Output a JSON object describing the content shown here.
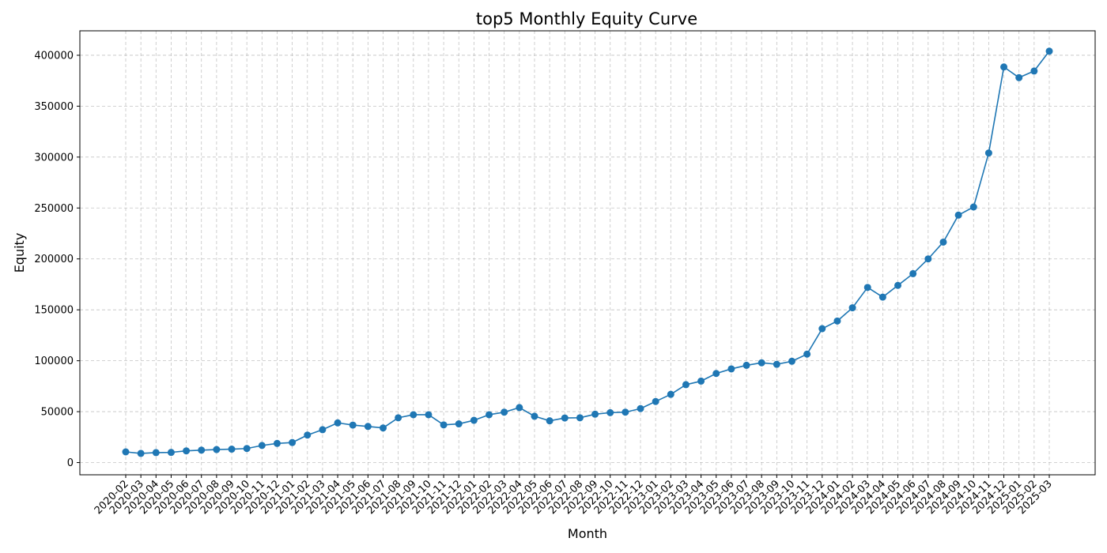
{
  "chart_data": {
    "type": "line",
    "title": "top5 Monthly Equity Curve",
    "xlabel": "Month",
    "ylabel": "Equity",
    "ylim": [
      -12000,
      424000
    ],
    "yticks": [
      0,
      50000,
      100000,
      150000,
      200000,
      250000,
      300000,
      350000,
      400000
    ],
    "grid": true,
    "color": "#1f77b4",
    "categories": [
      "2020-02",
      "2020-03",
      "2020-04",
      "2020-05",
      "2020-06",
      "2020-07",
      "2020-08",
      "2020-09",
      "2020-10",
      "2020-11",
      "2020-12",
      "2021-01",
      "2021-02",
      "2021-03",
      "2021-04",
      "2021-05",
      "2021-06",
      "2021-07",
      "2021-08",
      "2021-09",
      "2021-10",
      "2021-11",
      "2021-12",
      "2022-01",
      "2022-02",
      "2022-03",
      "2022-04",
      "2022-05",
      "2022-06",
      "2022-07",
      "2022-08",
      "2022-09",
      "2022-10",
      "2022-11",
      "2022-12",
      "2023-01",
      "2023-02",
      "2023-03",
      "2023-04",
      "2023-05",
      "2023-06",
      "2023-07",
      "2023-08",
      "2023-09",
      "2023-10",
      "2023-11",
      "2023-12",
      "2024-01",
      "2024-02",
      "2024-03",
      "2024-04",
      "2024-05",
      "2024-06",
      "2024-07",
      "2024-08",
      "2024-09",
      "2024-10",
      "2024-11",
      "2024-12",
      "2025-01",
      "2025-02",
      "2025-03"
    ],
    "series": [
      {
        "values": [
          10500,
          9000,
          9800,
          10000,
          11500,
          12200,
          12800,
          13200,
          13800,
          16800,
          18800,
          19700,
          27000,
          32300,
          39000,
          36800,
          35500,
          34000,
          44000,
          47000,
          47000,
          37000,
          38000,
          41500,
          47000,
          49500,
          54000,
          45500,
          41000,
          43800,
          44000,
          47500,
          49000,
          49500,
          53000,
          60000,
          67000,
          76500,
          80000,
          87500,
          92000,
          95500,
          98000,
          96500,
          99500,
          106500,
          131500,
          139000,
          152000,
          172000,
          162500,
          174000,
          185500,
          200000,
          216500,
          243000,
          251000,
          304000,
          388500,
          378000,
          384500,
          404000
        ]
      }
    ]
  }
}
